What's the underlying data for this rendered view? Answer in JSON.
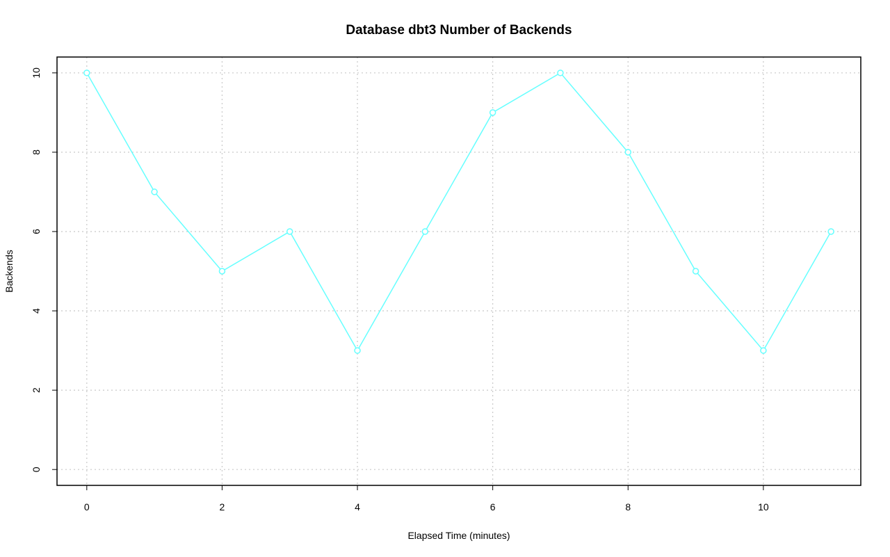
{
  "chart_data": {
    "type": "line",
    "title": "Database dbt3 Number of Backends",
    "x_label": "Elapsed Time (minutes)",
    "y_label": "Backends",
    "x": [
      0,
      1,
      2,
      3,
      4,
      5,
      6,
      7,
      8,
      9,
      10,
      11
    ],
    "values": [
      10,
      7,
      5,
      6,
      3,
      6,
      9,
      10,
      8,
      5,
      3,
      6
    ],
    "color": "#66ffff",
    "xlim": [
      -0.44,
      11.44
    ],
    "xticks": [
      0,
      2,
      4,
      6,
      8,
      10
    ],
    "ylim": [
      -0.4,
      10.4
    ],
    "yticks": [
      0,
      2,
      4,
      6,
      8,
      10
    ],
    "grid": true
  }
}
